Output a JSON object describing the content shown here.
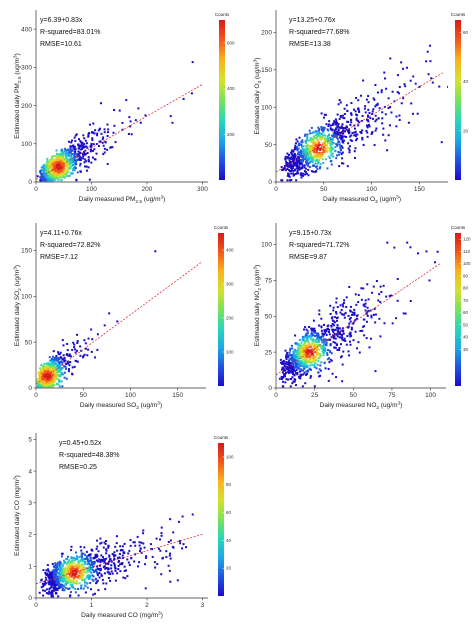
{
  "colors": {
    "colormap": [
      "#1a0cc9",
      "#1f55e0",
      "#1ea9e6",
      "#28d7b8",
      "#7be25a",
      "#d4e22a",
      "#fbb31c",
      "#f2581c",
      "#d91a1a"
    ],
    "fit_line": "#e0303a",
    "axis": "#333333",
    "background": "#ffffff"
  },
  "chart_data": [
    {
      "id": "pm25",
      "type": "scatter",
      "subtype": "density-scatter",
      "xlabel": {
        "pre": "Daily measured PM",
        "sub": "2.5",
        "post": " (ug/m",
        "sup": "3",
        "tail": ")"
      },
      "ylabel": {
        "pre": "Estimated daily PM",
        "sub": "2.5",
        "post": " (ug/m",
        "sup": "3",
        "tail": ")"
      },
      "xlim": [
        0,
        310
      ],
      "ylim": [
        0,
        450
      ],
      "xticks": [
        0,
        100,
        200,
        300
      ],
      "xtick_labels": [
        "0",
        "100",
        "200",
        "300"
      ],
      "yticks": [
        0,
        100,
        200,
        300,
        400
      ],
      "ytick_labels": [
        "0",
        "100",
        "200",
        "300",
        "400"
      ],
      "stats": [
        "y=6.39+0.83x",
        "R-squared=83.01%",
        "RMSE=10.61"
      ],
      "fit": {
        "intercept": 6.39,
        "slope": 0.83
      },
      "density_core": {
        "x": 40,
        "y": 40
      },
      "colorbar": {
        "label": "Counts",
        "ticks": [
          200,
          400,
          600
        ],
        "tick_labels": [
          "200",
          "400",
          "600"
        ],
        "max": 700
      }
    },
    {
      "id": "o3",
      "type": "scatter",
      "subtype": "density-scatter",
      "xlabel": {
        "pre": "Daily measured O",
        "sub": "3",
        "post": " (ug/m",
        "sup": "3",
        "tail": ")"
      },
      "ylabel": {
        "pre": "Estimated daily O",
        "sub": "3",
        "post": " (ug/m",
        "sup": "3",
        "tail": ")"
      },
      "xlim": [
        0,
        180
      ],
      "ylim": [
        0,
        230
      ],
      "xticks": [
        0,
        50,
        100,
        150
      ],
      "xtick_labels": [
        "0",
        "50",
        "100",
        "150"
      ],
      "yticks": [
        0,
        50,
        100,
        150,
        200
      ],
      "ytick_labels": [
        "0",
        "50",
        "100",
        "150",
        "200"
      ],
      "stats": [
        "y=13.25+0.76x",
        "R-squared=77.68%",
        "RMSE=13.38"
      ],
      "fit": {
        "intercept": 13.25,
        "slope": 0.76
      },
      "density_core": {
        "x": 45,
        "y": 45
      },
      "colorbar": {
        "label": "Counts",
        "ticks": [
          20,
          40,
          60
        ],
        "tick_labels": [
          "20",
          "40",
          "60"
        ],
        "max": 65
      }
    },
    {
      "id": "so2",
      "type": "scatter",
      "subtype": "density-scatter",
      "xlabel": {
        "pre": "Daily measured SO",
        "sub": "2",
        "post": " (ug/m",
        "sup": "3",
        "tail": ")"
      },
      "ylabel": {
        "pre": "Estimated daily SO",
        "sub": "2",
        "post": " (ug/m",
        "sup": "3",
        "tail": ")"
      },
      "xlim": [
        0,
        180
      ],
      "ylim": [
        0,
        180
      ],
      "xticks": [
        0,
        50,
        100,
        150
      ],
      "xtick_labels": [
        "0",
        "50",
        "100",
        "150"
      ],
      "yticks": [
        0,
        50,
        100,
        150
      ],
      "ytick_labels": [
        "0",
        "50",
        "100",
        "150"
      ],
      "stats": [
        "y=4.11+0.76x",
        "R-squared=72.82%",
        "RMSE=7.12"
      ],
      "fit": {
        "intercept": 4.11,
        "slope": 0.76
      },
      "density_core": {
        "x": 12,
        "y": 13
      },
      "colorbar": {
        "label": "Counts",
        "ticks": [
          100,
          200,
          300,
          400
        ],
        "tick_labels": [
          "100",
          "200",
          "300",
          "400"
        ],
        "max": 450
      }
    },
    {
      "id": "no2",
      "type": "scatter",
      "subtype": "density-scatter",
      "xlabel": {
        "pre": "Daily measured NO",
        "sub": "2",
        "post": " (ug/m",
        "sup": "3",
        "tail": ")"
      },
      "ylabel": {
        "pre": "Estimated daily NO",
        "sub": "2",
        "post": " (ug/m",
        "sup": "3",
        "tail": ")"
      },
      "xlim": [
        0,
        110
      ],
      "ylim": [
        0,
        115
      ],
      "xticks": [
        0,
        25,
        50,
        75,
        100
      ],
      "xtick_labels": [
        "0",
        "25",
        "50",
        "75",
        "100"
      ],
      "yticks": [
        0,
        25,
        50,
        75,
        100
      ],
      "ytick_labels": [
        "0",
        "25",
        "50",
        "75",
        "100"
      ],
      "stats": [
        "y=9.15+0.73x",
        "R-squared=71.72%",
        "RMSE=9.87"
      ],
      "fit": {
        "intercept": 9.15,
        "slope": 0.73
      },
      "density_core": {
        "x": 22,
        "y": 25
      },
      "colorbar": {
        "label": "Counts",
        "ticks": [
          30,
          40,
          50,
          60,
          70,
          80,
          90,
          100,
          110,
          120
        ],
        "tick_labels": [
          "30",
          "40",
          "50",
          "60",
          "70",
          "80",
          "90",
          "100",
          "110",
          "120"
        ],
        "max": 125
      }
    },
    {
      "id": "co",
      "type": "scatter",
      "subtype": "density-scatter",
      "xlabel": {
        "pre": "Daily measured CO",
        "sub": "",
        "post": " (mg/m",
        "sup": "3",
        "tail": ")"
      },
      "ylabel": {
        "pre": "Estimated daily CO",
        "sub": "",
        "post": " (mg/m",
        "sup": "3",
        "tail": ")"
      },
      "xlim": [
        0,
        3.1
      ],
      "ylim": [
        0,
        5.2
      ],
      "xticks": [
        0,
        1,
        2,
        3
      ],
      "xtick_labels": [
        "0",
        "1",
        "2",
        "3"
      ],
      "yticks": [
        0,
        1,
        2,
        3,
        4,
        5
      ],
      "ytick_labels": [
        "0",
        "1",
        "2",
        "3",
        "4",
        "5"
      ],
      "stats": [
        "y=0.45+0.52x",
        "R-squared=48.38%",
        "RMSE=0.25"
      ],
      "fit": {
        "intercept": 0.45,
        "slope": 0.52
      },
      "density_core": {
        "x": 0.7,
        "y": 0.8
      },
      "colorbar": {
        "label": "Counts",
        "ticks": [
          20,
          40,
          60,
          80,
          100
        ],
        "tick_labels": [
          "20",
          "40",
          "60",
          "80",
          "100"
        ],
        "max": 110
      }
    }
  ]
}
